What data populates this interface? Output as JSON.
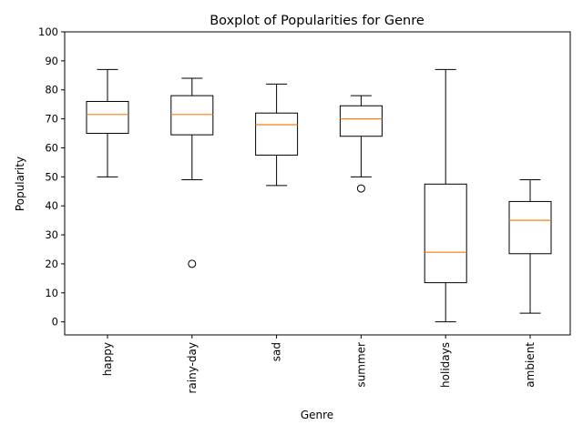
{
  "chart_data": {
    "type": "box",
    "title": "Boxplot of Popularities for Genre",
    "xlabel": "Genre",
    "ylabel": "Popularity",
    "ylim": [
      -4.5,
      100
    ],
    "yticks": [
      0,
      10,
      20,
      30,
      40,
      50,
      60,
      70,
      80,
      90,
      100
    ],
    "grid": false,
    "categories": [
      "happy",
      "rainy-day",
      "sad",
      "summer",
      "holidays",
      "ambient"
    ],
    "boxes": [
      {
        "whisker_low": 50,
        "q1": 65,
        "median": 71.5,
        "q3": 76,
        "whisker_high": 87,
        "outliers": []
      },
      {
        "whisker_low": 49,
        "q1": 64.5,
        "median": 71.5,
        "q3": 78,
        "whisker_high": 84,
        "outliers": [
          20
        ]
      },
      {
        "whisker_low": 47,
        "q1": 57.5,
        "median": 68,
        "q3": 72,
        "whisker_high": 82,
        "outliers": []
      },
      {
        "whisker_low": 50,
        "q1": 64,
        "median": 70,
        "q3": 74.5,
        "whisker_high": 78,
        "outliers": [
          46
        ]
      },
      {
        "whisker_low": 0,
        "q1": 13.5,
        "median": 24,
        "q3": 47.5,
        "whisker_high": 87,
        "outliers": []
      },
      {
        "whisker_low": 3,
        "q1": 23.5,
        "median": 35,
        "q3": 41.5,
        "whisker_high": 49,
        "outliers": []
      }
    ],
    "colors": {
      "box": "#000000",
      "median": "#ff7f0e",
      "outlier": "#000000",
      "axis": "#000000"
    }
  }
}
